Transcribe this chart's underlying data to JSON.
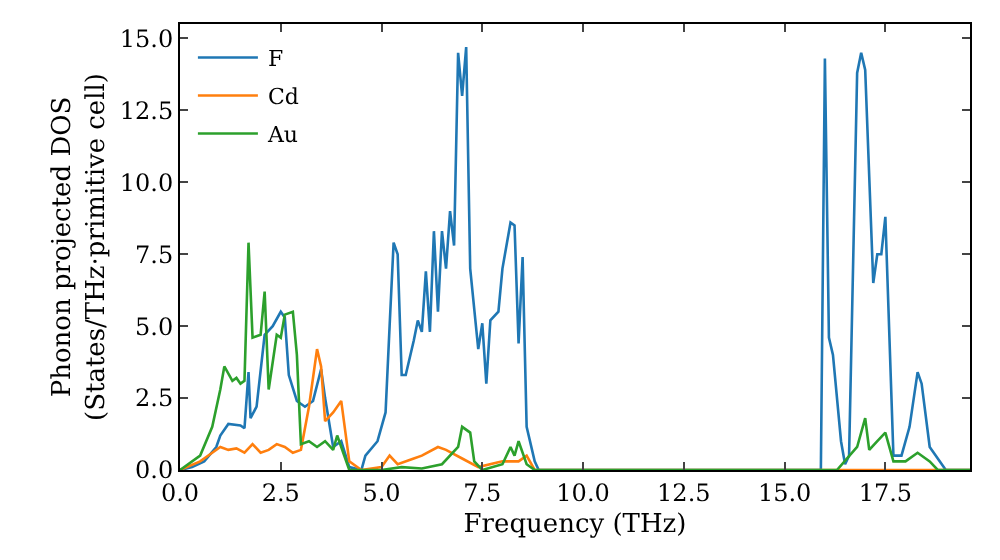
{
  "chart_data": {
    "type": "line",
    "xlabel": "Frequency (THz)",
    "ylabel": "Phonon projected DOS\n(States/THz·primitive cell)",
    "xlim": [
      0,
      19.6
    ],
    "ylim": [
      0,
      15.5
    ],
    "xticks": [
      {
        "value": 0,
        "label": "0.0"
      },
      {
        "value": 2.5,
        "label": "2.5"
      },
      {
        "value": 5,
        "label": "5.0"
      },
      {
        "value": 7.5,
        "label": "7.5"
      },
      {
        "value": 10,
        "label": "10.0"
      },
      {
        "value": 12.5,
        "label": "12.5"
      },
      {
        "value": 15,
        "label": "15.0"
      },
      {
        "value": 17.5,
        "label": "17.5"
      }
    ],
    "yticks": [
      {
        "value": 0,
        "label": "0.0"
      },
      {
        "value": 2.5,
        "label": "2.5"
      },
      {
        "value": 5,
        "label": "5.0"
      },
      {
        "value": 7.5,
        "label": "7.5"
      },
      {
        "value": 10,
        "label": "10.0"
      },
      {
        "value": 12.5,
        "label": "12.5"
      },
      {
        "value": 15,
        "label": "15.0"
      }
    ],
    "legend": "top left",
    "marker": "none",
    "line_style": "solid",
    "series": [
      {
        "name": "F",
        "color": "#1f77b4",
        "x": [
          0,
          0.3,
          0.6,
          0.9,
          1.0,
          1.2,
          1.5,
          1.6,
          1.7,
          1.75,
          1.9,
          2.1,
          2.3,
          2.5,
          2.6,
          2.7,
          2.9,
          3.1,
          3.3,
          3.5,
          3.6,
          3.8,
          4.0,
          4.2,
          4.5,
          4.6,
          4.9,
          5.1,
          5.2,
          5.3,
          5.4,
          5.5,
          5.6,
          5.8,
          5.9,
          6.0,
          6.1,
          6.2,
          6.3,
          6.4,
          6.5,
          6.6,
          6.7,
          6.8,
          6.9,
          7.0,
          7.1,
          7.2,
          7.4,
          7.5,
          7.6,
          7.7,
          7.9,
          8.0,
          8.2,
          8.3,
          8.4,
          8.5,
          8.6,
          8.8,
          8.9,
          15.9,
          16.0,
          16.1,
          16.2,
          16.4,
          16.5,
          16.6,
          16.8,
          16.9,
          17.0,
          17.2,
          17.3,
          17.4,
          17.5,
          17.7,
          17.9,
          18.1,
          18.3,
          18.4,
          18.6,
          18.9,
          19.0,
          19.6
        ],
        "values": [
          0,
          0.1,
          0.3,
          0.8,
          1.2,
          1.6,
          1.55,
          1.45,
          3.4,
          1.8,
          2.2,
          4.7,
          5.0,
          5.5,
          5.3,
          3.3,
          2.4,
          2.2,
          2.4,
          3.5,
          2.5,
          0.8,
          1.0,
          0.1,
          0,
          0.5,
          1.0,
          2.0,
          5.0,
          7.9,
          7.5,
          3.3,
          3.3,
          4.5,
          5.2,
          4.8,
          6.9,
          4.8,
          8.3,
          5.5,
          8.3,
          7.0,
          9.0,
          7.8,
          14.5,
          13.0,
          14.7,
          7.0,
          4.2,
          5.1,
          3.0,
          5.2,
          5.5,
          7.0,
          8.6,
          8.5,
          4.4,
          7.4,
          1.5,
          0.3,
          0,
          0,
          14.3,
          4.6,
          4.0,
          1.0,
          0.2,
          0.5,
          13.8,
          14.5,
          13.9,
          6.5,
          7.5,
          7.5,
          8.8,
          0.5,
          0.5,
          1.5,
          3.4,
          3.0,
          0.8,
          0.2,
          0,
          0
        ]
      },
      {
        "name": "Cd",
        "color": "#ff7f0e",
        "x": [
          0,
          0.5,
          0.8,
          1.0,
          1.2,
          1.4,
          1.6,
          1.8,
          2.0,
          2.2,
          2.4,
          2.6,
          2.8,
          3.0,
          3.2,
          3.4,
          3.5,
          3.6,
          3.8,
          4.0,
          4.2,
          4.5,
          5.0,
          5.2,
          5.4,
          5.8,
          6.0,
          6.4,
          6.6,
          7.0,
          7.4,
          8.0,
          8.4,
          8.6,
          8.8,
          19.6
        ],
        "values": [
          0,
          0.3,
          0.6,
          0.8,
          0.7,
          0.75,
          0.6,
          0.9,
          0.6,
          0.7,
          0.9,
          0.8,
          0.6,
          0.7,
          2.2,
          4.2,
          3.6,
          1.7,
          2.0,
          2.4,
          0.3,
          0,
          0.1,
          0.5,
          0.2,
          0.4,
          0.5,
          0.8,
          0.7,
          0.4,
          0.1,
          0.3,
          0.3,
          0.5,
          0,
          0
        ]
      },
      {
        "name": "Au",
        "color": "#2ca02c",
        "x": [
          0,
          0.5,
          0.8,
          1.0,
          1.1,
          1.3,
          1.4,
          1.5,
          1.6,
          1.7,
          1.8,
          2.0,
          2.1,
          2.2,
          2.4,
          2.5,
          2.6,
          2.8,
          2.9,
          3.0,
          3.2,
          3.4,
          3.6,
          3.8,
          3.9,
          4.0,
          4.2,
          5.0,
          5.5,
          6.0,
          6.5,
          6.9,
          7.0,
          7.2,
          7.3,
          7.5,
          8.0,
          8.2,
          8.3,
          8.4,
          8.6,
          8.8,
          16.3,
          16.8,
          17.0,
          17.1,
          17.3,
          17.5,
          17.7,
          18.0,
          18.3,
          18.6,
          18.8,
          19.6
        ],
        "values": [
          0,
          0.5,
          1.5,
          2.8,
          3.6,
          3.1,
          3.2,
          3.0,
          3.1,
          7.9,
          4.6,
          4.7,
          6.2,
          2.8,
          4.7,
          4.6,
          5.4,
          5.5,
          4.0,
          0.9,
          1.0,
          0.8,
          1.0,
          0.7,
          1.2,
          0.8,
          0,
          0,
          0.1,
          0.05,
          0.2,
          0.8,
          1.5,
          1.3,
          0.3,
          0,
          0.2,
          0.8,
          0.5,
          1.0,
          0.2,
          0,
          0,
          0.8,
          1.8,
          0.7,
          1.0,
          1.3,
          0.3,
          0.3,
          0.6,
          0.3,
          0,
          0
        ]
      }
    ]
  }
}
